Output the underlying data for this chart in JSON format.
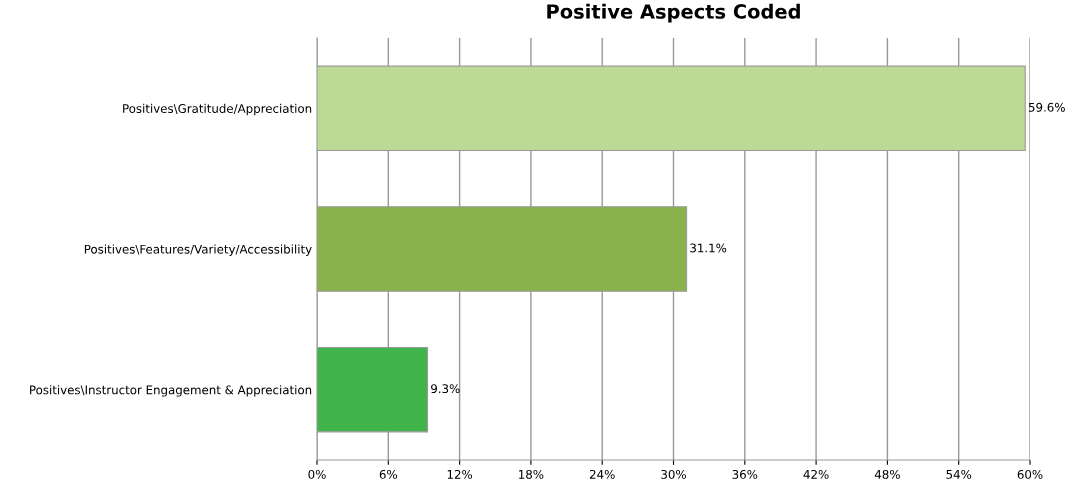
{
  "chart_data": {
    "type": "bar",
    "orientation": "horizontal",
    "title": "Positive Aspects Coded",
    "categories": [
      "Positives\\Gratitude/Appreciation",
      "Positives\\Features/Variety/Accessibility",
      "Positives\\Instructor Engagement & Appreciation"
    ],
    "values": [
      59.6,
      31.1,
      9.3
    ],
    "colors": [
      "#bdd996",
      "#8ab24c",
      "#41b34b"
    ],
    "value_labels": [
      "59.6%",
      "31.1%",
      "9.3%"
    ],
    "xlim": [
      0,
      60
    ],
    "xticks": [
      {
        "value": 0,
        "label": "0%"
      },
      {
        "value": 6,
        "label": "6%"
      },
      {
        "value": 12,
        "label": "12%"
      },
      {
        "value": 18,
        "label": "18%"
      },
      {
        "value": 24,
        "label": "24%"
      },
      {
        "value": 30,
        "label": "30%"
      },
      {
        "value": 36,
        "label": "36%"
      },
      {
        "value": 42,
        "label": "42%"
      },
      {
        "value": 48,
        "label": "48%"
      },
      {
        "value": 54,
        "label": "54%"
      },
      {
        "value": 60,
        "label": "60%"
      }
    ],
    "grid": "x",
    "legend": false
  }
}
